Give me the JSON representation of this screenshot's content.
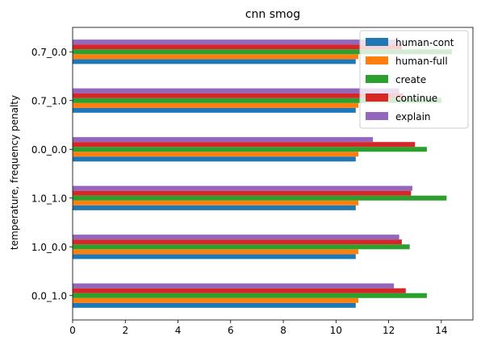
{
  "chart_data": {
    "type": "bar",
    "orientation": "horizontal",
    "title": "cnn smog",
    "xlabel": "",
    "ylabel": "temperature, frequency penalty",
    "xlim": [
      0,
      15.2
    ],
    "xticks": [
      0,
      2,
      4,
      6,
      8,
      10,
      12,
      14
    ],
    "categories": [
      "0.0_1.0",
      "1.0_0.0",
      "1.0_1.0",
      "0.0_0.0",
      "0.7_1.0",
      "0.7_0.0"
    ],
    "series": [
      {
        "name": "human-cont",
        "color": "#1f77b4",
        "values": [
          10.75,
          10.75,
          10.75,
          10.75,
          10.75,
          10.75
        ]
      },
      {
        "name": "human-full",
        "color": "#ff7f0e",
        "values": [
          10.85,
          10.85,
          10.85,
          10.85,
          10.85,
          10.85
        ]
      },
      {
        "name": "create",
        "color": "#2ca02c",
        "values": [
          13.45,
          12.8,
          14.2,
          13.45,
          14.0,
          14.4
        ]
      },
      {
        "name": "continue",
        "color": "#d62728",
        "values": [
          12.65,
          12.5,
          12.85,
          13.0,
          12.55,
          12.5
        ]
      },
      {
        "name": "explain",
        "color": "#9467bd",
        "values": [
          12.2,
          12.4,
          12.9,
          11.4,
          12.4,
          12.4
        ]
      }
    ],
    "legend_position": "top-right",
    "grid": false
  }
}
